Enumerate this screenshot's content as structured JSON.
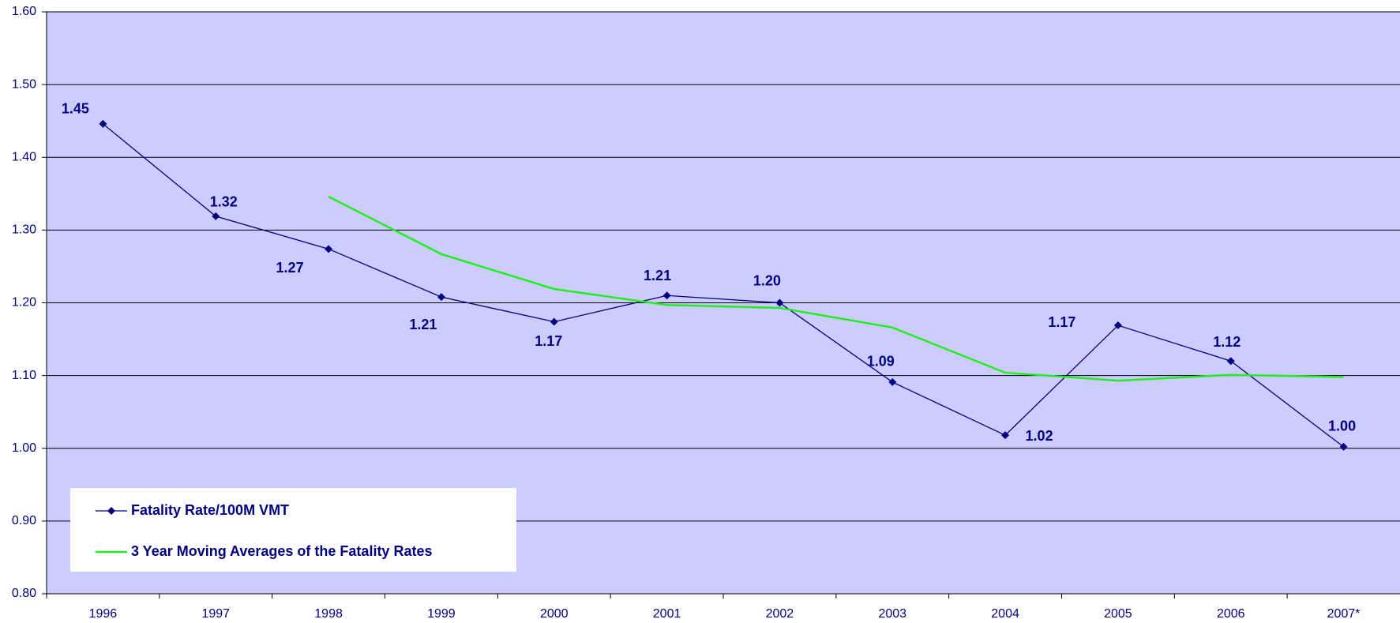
{
  "chart_data": {
    "type": "line",
    "categories": [
      "1996",
      "1997",
      "1998",
      "1999",
      "2000",
      "2001",
      "2002",
      "2003",
      "2004",
      "2005",
      "2006",
      "2007*"
    ],
    "series": [
      {
        "name": "Fatality Rate/100M VMT",
        "color": "#000080",
        "marker": "diamond",
        "values": [
          1.446,
          1.319,
          1.274,
          1.208,
          1.174,
          1.21,
          1.2,
          1.091,
          1.018,
          1.169,
          1.12,
          1.002
        ],
        "value_labels": [
          "1.45",
          "1.32",
          "1.27",
          "1.21",
          "1.17",
          "1.21",
          "1.20",
          "1.09",
          "1.02",
          "1.17",
          "1.12",
          "1.00"
        ]
      },
      {
        "name": "3 Year Moving Averages of the Fatality Rates",
        "color": "#22ee22",
        "values": [
          null,
          null,
          1.346,
          1.267,
          1.219,
          1.197,
          1.193,
          1.166,
          1.104,
          1.093,
          1.101,
          1.098
        ]
      }
    ],
    "ylim": [
      0.8,
      1.6
    ],
    "yticks": [
      {
        "value": 0.8,
        "label": "0.80"
      },
      {
        "value": 0.9,
        "label": "0.90"
      },
      {
        "value": 1.0,
        "label": "1.00"
      },
      {
        "value": 1.1,
        "label": "1.10"
      },
      {
        "value": 1.2,
        "label": "1.20"
      },
      {
        "value": 1.3,
        "label": "1.30"
      },
      {
        "value": 1.4,
        "label": "1.40"
      },
      {
        "value": 1.5,
        "label": "1.50"
      },
      {
        "value": 1.6,
        "label": "1.60"
      }
    ],
    "grid": true,
    "legend": "lower left",
    "background": "#ccccff"
  }
}
